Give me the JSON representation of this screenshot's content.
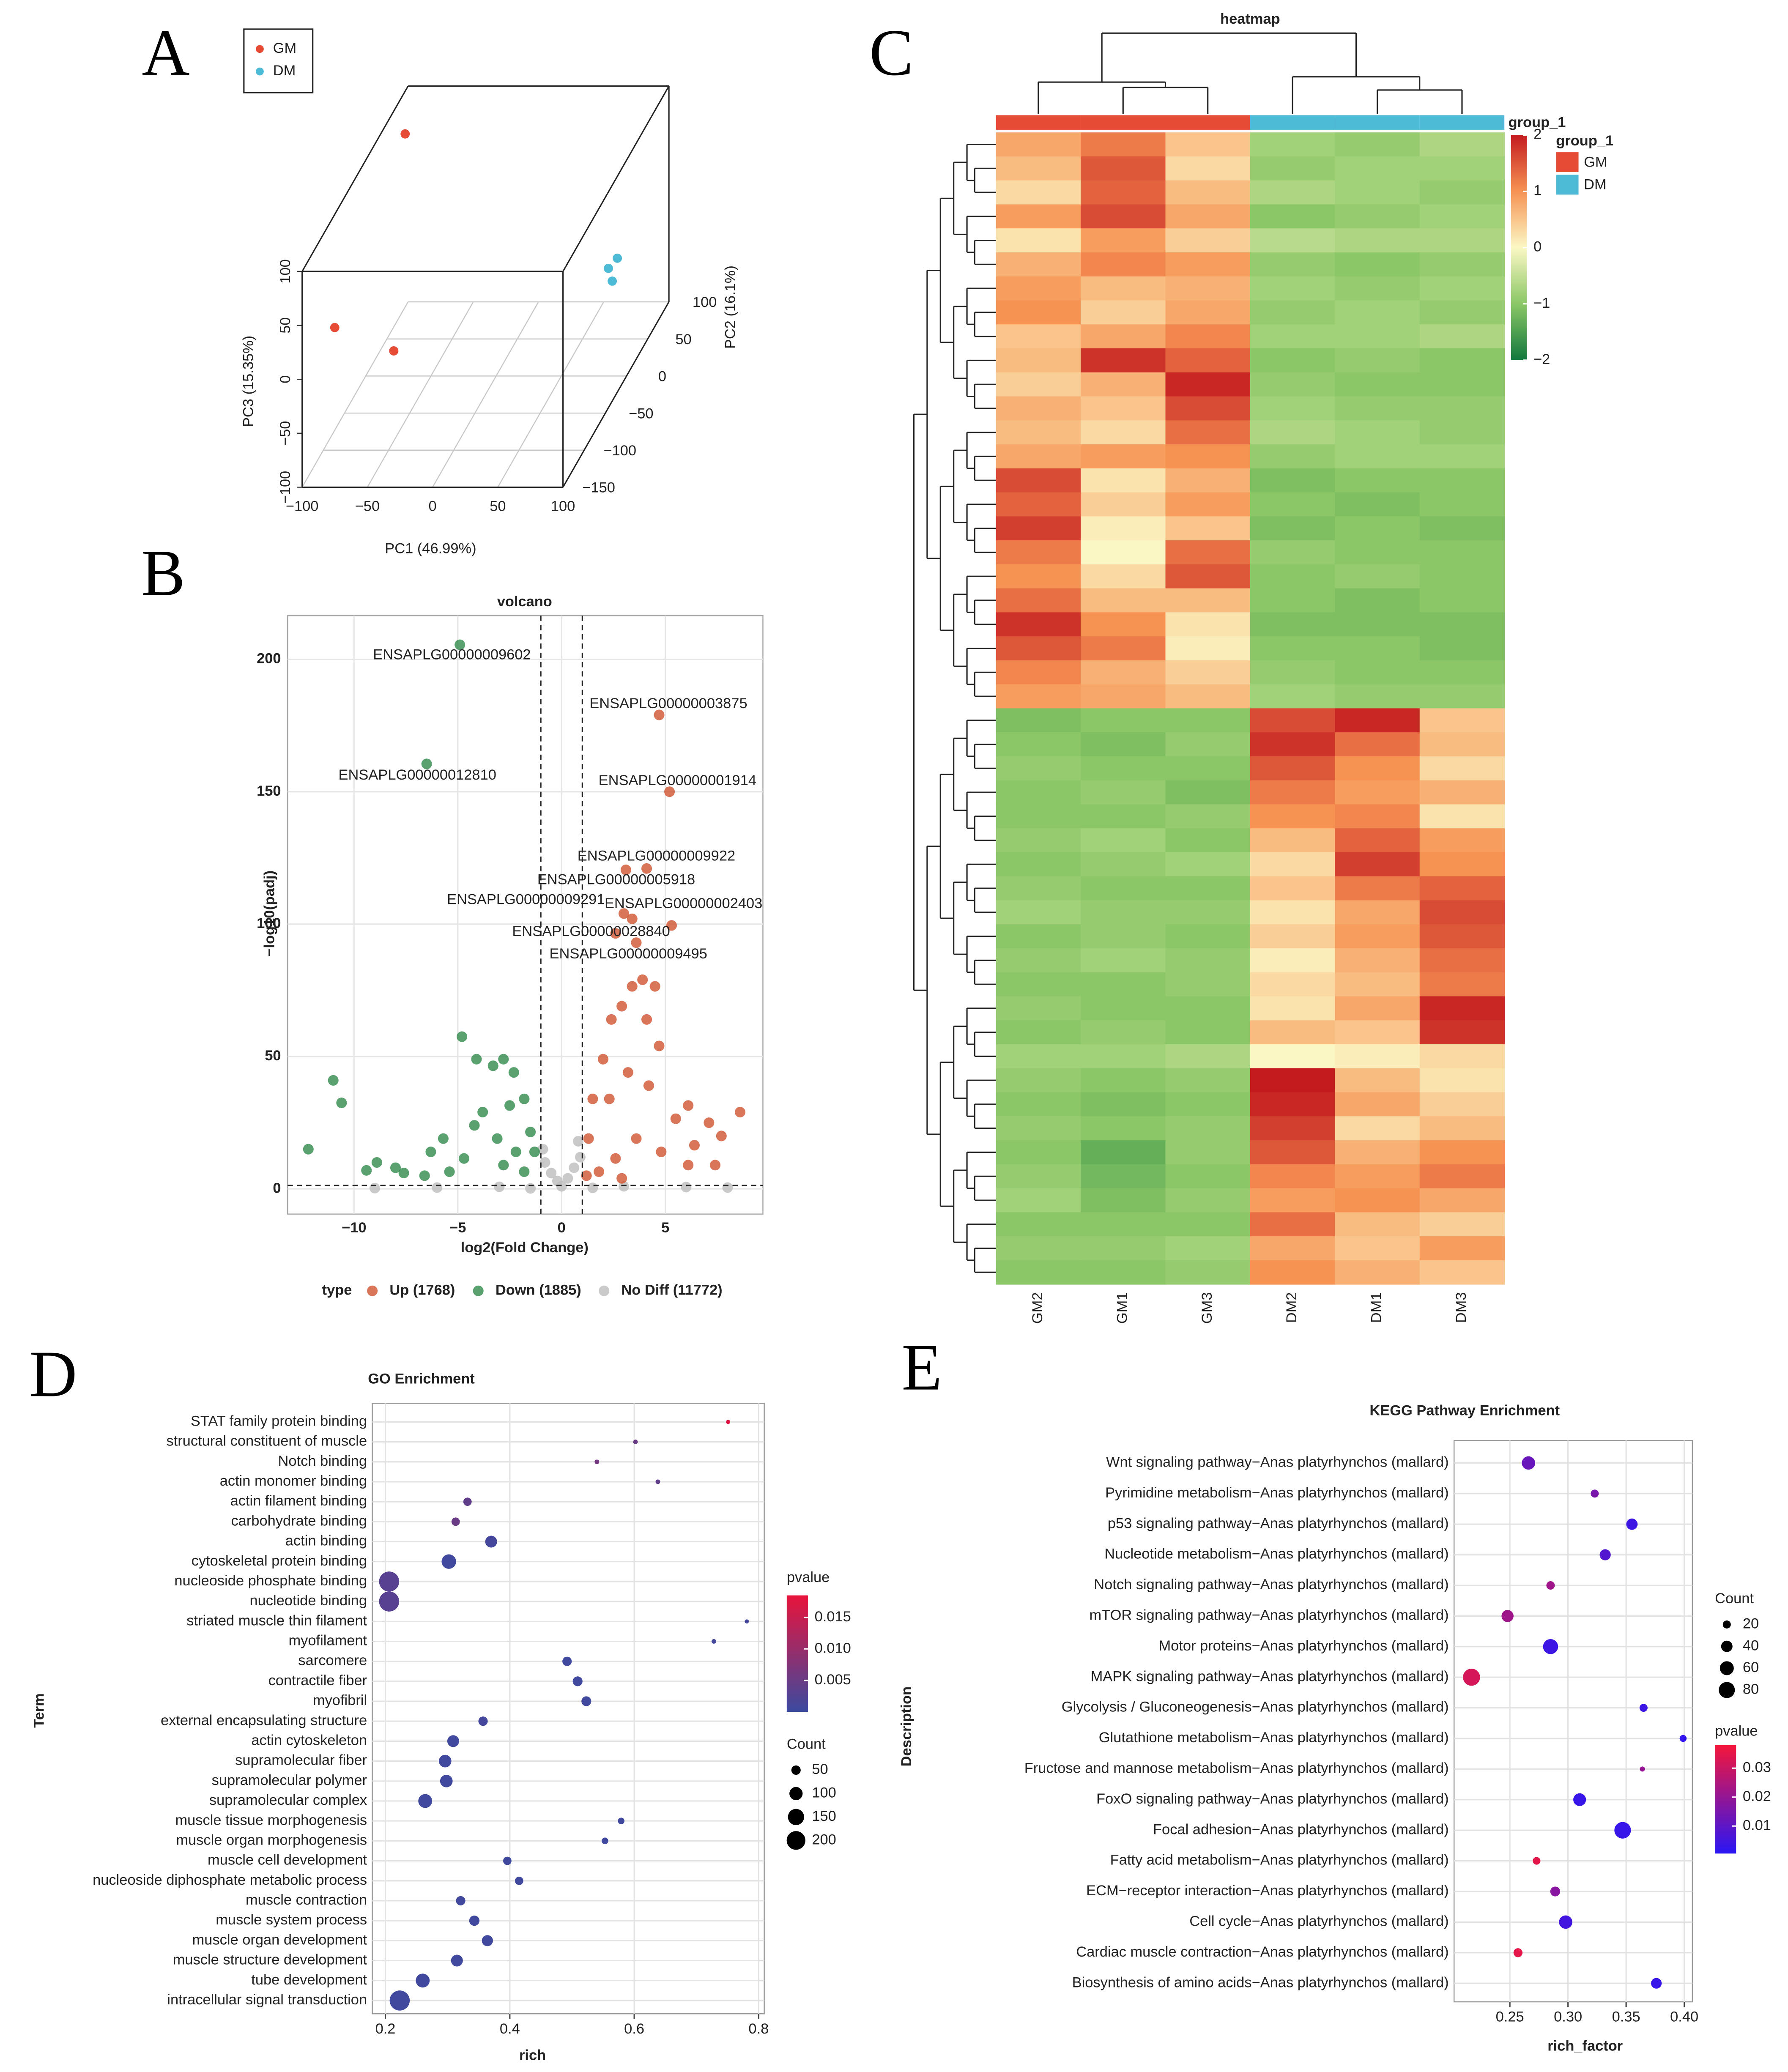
{
  "chart_data": [
    {
      "type": "scatter3d",
      "panel_label": "A",
      "xlabel": "PC1 (46.99%)",
      "ylabel": "PC2 (16.1%)",
      "zlabel": "PC3 (15.35%)",
      "xlim": [
        -100,
        100
      ],
      "ylim": [
        -150,
        100
      ],
      "zlim": [
        -100,
        100
      ],
      "xticks": [
        {
          "value": -100,
          "label": "−100"
        },
        {
          "value": -50,
          "label": "−50"
        },
        0,
        50,
        100
      ],
      "yticks": [
        {
          "value": -150,
          "label": "−150"
        },
        {
          "value": -100,
          "label": "−100"
        },
        {
          "value": -50,
          "label": "−50"
        },
        0,
        50,
        100
      ],
      "zticks": [
        {
          "value": -100,
          "label": "−100"
        },
        {
          "value": -50,
          "label": "−50"
        },
        0,
        50,
        100
      ],
      "series": [
        {
          "name": "GM",
          "color": "#e64b35",
          "x": [
            -75,
            -46,
            -86
          ],
          "y": [
            -150,
            -100,
            50
          ],
          "z": [
            48,
            -8,
            90
          ]
        },
        {
          "name": "DM",
          "color": "#4dbbd5",
          "x": [
            90,
            90,
            90
          ],
          "y": [
            9,
            -12,
            -3
          ],
          "z": [
            3,
            8,
            -10
          ]
        }
      ]
    },
    {
      "type": "scatter",
      "panel_label": "B",
      "title": "volcano",
      "xlabel": "log2(Fold Change)",
      "ylabel": "−log10(padj)",
      "legend_title": "type",
      "xlim": [
        -13.2,
        9.7
      ],
      "ylim": [
        -9.5,
        216.5
      ],
      "xticks": [
        {
          "value": -10,
          "label": "−10"
        },
        {
          "value": -5,
          "label": "−5"
        },
        0,
        5
      ],
      "yticks": [
        0,
        50,
        100,
        150,
        200
      ],
      "vlines": [
        -1,
        1
      ],
      "hline": 1.3,
      "grid": true,
      "series": [
        {
          "name": "Up (1768)",
          "color": "#d0532e",
          "x": [
            8.6,
            7.7,
            7.4,
            7.1,
            6.1,
            5.5,
            4.7,
            4.1,
            3.4,
            2.9,
            2.4,
            2.0,
            1.5,
            1.3,
            2.3,
            3.2,
            4.2,
            3.6,
            4.8,
            6.1,
            2.6,
            1.8,
            1.2,
            2.9,
            3.9,
            4.5,
            2.6,
            6.4
          ],
          "values": [
            29,
            20,
            9,
            25,
            31.5,
            26.5,
            54,
            64,
            76.5,
            69,
            64,
            49,
            34,
            19,
            34,
            44,
            39,
            19,
            14,
            9,
            11.5,
            6.5,
            5,
            4,
            79,
            76.5,
            96.5,
            16.5
          ]
        },
        {
          "name": "Down (1885)",
          "color": "#2f8a4a",
          "x": [
            -12.2,
            -11,
            -10.6,
            -9.4,
            -8.9,
            -8,
            -6.3,
            -5.7,
            -4.8,
            -4.1,
            -3.3,
            -2.8,
            -2.3,
            -1.8,
            -1.5,
            -1.3,
            -2.2,
            -3.1,
            -3.8,
            -4.7,
            -5.4,
            -6.6,
            -7.6,
            -1.8,
            -2.8,
            -4.2,
            -2.5
          ],
          "values": [
            15,
            41,
            32.5,
            7,
            10,
            8,
            14,
            19,
            57.5,
            49,
            46.5,
            49,
            44,
            34,
            21.5,
            14,
            14,
            19,
            29,
            11.5,
            6.5,
            5,
            6,
            6.5,
            9,
            24,
            31.5
          ]
        },
        {
          "name": "No Diff (11772)",
          "color": "#bdbdbd",
          "x": [
            -0.8,
            -0.5,
            -0.2,
            0,
            0.3,
            0.6,
            0.9,
            -3,
            -6,
            3,
            6,
            -9,
            8,
            -1.5,
            1.5,
            -0.9,
            0.8
          ],
          "values": [
            10,
            6,
            3,
            1,
            4,
            8,
            12,
            0.8,
            0.5,
            1,
            0.7,
            0.3,
            0.5,
            0.2,
            0.4,
            15,
            18
          ]
        }
      ],
      "annotations": [
        {
          "text": "ENSAPLG00000009602",
          "x": -4.9,
          "y": 205.5,
          "color": "#2f8a4a"
        },
        {
          "text": "ENSAPLG00000012810",
          "x": -6.5,
          "y": 160.5,
          "color": "#2f8a4a"
        },
        {
          "text": "ENSAPLG00000003875",
          "x": 4.7,
          "y": 179,
          "color": "#d0532e"
        },
        {
          "text": "ENSAPLG00000001914",
          "x": 5.2,
          "y": 150,
          "color": "#d0532e"
        },
        {
          "text": "ENSAPLG00000009922",
          "x": 3.1,
          "y": 120.5,
          "color": "#d0532e"
        },
        {
          "text": "ENSAPLG00000005918",
          "x": 4.1,
          "y": 121,
          "color": "#d0532e"
        },
        {
          "text": "ENSAPLG00000009291",
          "x": 3.0,
          "y": 104,
          "color": "#d0532e"
        },
        {
          "text": "ENSAPLG00000002403",
          "x": 5.3,
          "y": 99.5,
          "color": "#d0532e"
        },
        {
          "text": "ENSAPLG00000028840",
          "x": 3.4,
          "y": 102,
          "color": "#d0532e"
        },
        {
          "text": "ENSAPLG00000009495",
          "x": 3.6,
          "y": 93,
          "color": "#d0532e"
        }
      ]
    },
    {
      "type": "heatmap",
      "panel_label": "C",
      "title": "heatmap",
      "group_label": "group_1",
      "categories": [
        "GM2",
        "GM1",
        "GM3",
        "DM2",
        "DM1",
        "DM3"
      ],
      "groups": [
        "GM",
        "GM",
        "GM",
        "DM",
        "DM",
        "DM"
      ],
      "group_legend": {
        "title": "group_1",
        "names": [
          "GM",
          "DM"
        ],
        "colors": [
          "#e64b35",
          "#4dbbd5"
        ]
      },
      "zlim": [
        -2,
        2
      ],
      "zticks": [
        {
          "value": -2,
          "label": "−2"
        },
        {
          "value": -1,
          "label": "−1"
        },
        0,
        1,
        2
      ],
      "colorscale": [
        "#11783c",
        "#8bc766",
        "#fbf7c4",
        "#f69353",
        "#c41b1f"
      ],
      "values": [
        [
          0.8,
          1.2,
          0.5,
          -0.8,
          -0.9,
          -0.7
        ],
        [
          0.6,
          1.5,
          0.3,
          -0.9,
          -0.8,
          -0.8
        ],
        [
          0.3,
          1.4,
          0.6,
          -0.7,
          -0.8,
          -0.9
        ],
        [
          0.9,
          1.6,
          0.8,
          -1.0,
          -0.9,
          -0.8
        ],
        [
          0.2,
          0.9,
          0.4,
          -0.6,
          -0.7,
          -0.7
        ],
        [
          0.7,
          1.1,
          0.9,
          -0.9,
          -1.0,
          -0.9
        ],
        [
          0.9,
          0.6,
          0.7,
          -0.8,
          -0.9,
          -0.8
        ],
        [
          1.0,
          0.4,
          0.8,
          -0.9,
          -0.8,
          -0.9
        ],
        [
          0.5,
          0.8,
          1.1,
          -0.8,
          -0.8,
          -0.7
        ],
        [
          0.6,
          1.8,
          1.4,
          -1.0,
          -0.9,
          -1.0
        ],
        [
          0.4,
          0.7,
          1.9,
          -0.9,
          -1.0,
          -1.0
        ],
        [
          0.7,
          0.5,
          1.6,
          -0.8,
          -0.9,
          -0.9
        ],
        [
          0.6,
          0.3,
          1.3,
          -0.7,
          -0.8,
          -0.9
        ],
        [
          0.8,
          0.9,
          1.0,
          -0.9,
          -0.8,
          -0.8
        ],
        [
          1.6,
          0.2,
          0.7,
          -1.1,
          -1.0,
          -1.0
        ],
        [
          1.4,
          0.4,
          0.9,
          -1.0,
          -1.1,
          -1.0
        ],
        [
          1.7,
          0.1,
          0.5,
          -1.1,
          -1.0,
          -1.1
        ],
        [
          1.2,
          0.0,
          1.3,
          -0.9,
          -1.0,
          -1.0
        ],
        [
          1.0,
          0.3,
          1.5,
          -1.0,
          -0.9,
          -1.0
        ],
        [
          1.3,
          0.6,
          0.6,
          -1.0,
          -1.1,
          -1.0
        ],
        [
          1.8,
          1.0,
          0.2,
          -1.1,
          -1.1,
          -1.1
        ],
        [
          1.5,
          1.2,
          0.1,
          -1.0,
          -1.0,
          -1.1
        ],
        [
          1.1,
          0.7,
          0.4,
          -0.9,
          -1.0,
          -1.0
        ],
        [
          0.9,
          0.8,
          0.6,
          -0.8,
          -0.9,
          -0.9
        ],
        [
          -1.1,
          -1.0,
          -1.0,
          1.6,
          1.9,
          0.5
        ],
        [
          -1.0,
          -1.1,
          -0.9,
          1.8,
          1.3,
          0.6
        ],
        [
          -0.9,
          -1.0,
          -1.0,
          1.5,
          1.0,
          0.3
        ],
        [
          -1.0,
          -0.9,
          -1.1,
          1.2,
          0.9,
          0.7
        ],
        [
          -1.0,
          -1.0,
          -0.9,
          1.0,
          1.1,
          0.2
        ],
        [
          -0.9,
          -0.8,
          -1.0,
          0.6,
          1.4,
          0.9
        ],
        [
          -1.0,
          -0.9,
          -0.8,
          0.3,
          1.7,
          1.0
        ],
        [
          -0.9,
          -1.0,
          -1.0,
          0.5,
          1.2,
          1.4
        ],
        [
          -0.8,
          -0.9,
          -0.9,
          0.2,
          0.8,
          1.6
        ],
        [
          -1.0,
          -0.9,
          -1.0,
          0.4,
          0.9,
          1.5
        ],
        [
          -0.9,
          -0.8,
          -0.9,
          0.1,
          0.7,
          1.3
        ],
        [
          -1.0,
          -1.0,
          -0.9,
          0.3,
          0.6,
          1.2
        ],
        [
          -0.9,
          -1.0,
          -1.0,
          0.2,
          0.8,
          1.9
        ],
        [
          -1.0,
          -0.9,
          -1.0,
          0.6,
          0.5,
          1.8
        ],
        [
          -0.8,
          -0.8,
          -0.7,
          0.0,
          0.1,
          0.3
        ],
        [
          -0.9,
          -1.0,
          -0.9,
          2.0,
          0.6,
          0.2
        ],
        [
          -1.0,
          -1.1,
          -1.0,
          1.9,
          0.8,
          0.4
        ],
        [
          -0.9,
          -1.0,
          -0.9,
          1.7,
          0.3,
          0.6
        ],
        [
          -1.0,
          -1.3,
          -0.9,
          1.5,
          0.7,
          1.0
        ],
        [
          -0.9,
          -1.2,
          -1.0,
          1.1,
          0.9,
          1.2
        ],
        [
          -0.8,
          -1.1,
          -0.9,
          0.9,
          1.0,
          0.8
        ],
        [
          -1.0,
          -1.0,
          -1.0,
          1.3,
          0.6,
          0.4
        ],
        [
          -0.9,
          -0.9,
          -0.8,
          0.8,
          0.5,
          0.9
        ],
        [
          -1.0,
          -1.0,
          -0.9,
          1.0,
          0.7,
          0.5
        ]
      ]
    },
    {
      "type": "bubble",
      "panel_label": "D",
      "title": "GO Enrichment",
      "xlabel": "rich",
      "ylabel": "Term",
      "xlim": [
        0.179,
        0.809
      ],
      "xticks": [
        0.2,
        0.4,
        0.6,
        0.8
      ],
      "categories": [
        "STAT family protein binding",
        "structural constituent of muscle",
        "Notch binding",
        "actin monomer binding",
        "actin filament binding",
        "carbohydrate binding",
        "actin binding",
        "cytoskeletal protein binding",
        "nucleoside phosphate binding",
        "nucleotide binding",
        "striated muscle thin filament",
        "myofilament",
        "sarcomere",
        "contractile fiber",
        "myofibril",
        "external encapsulating structure",
        "actin cytoskeleton",
        "supramolecular fiber",
        "supramolecular polymer",
        "supramolecular complex",
        "muscle tissue morphogenesis",
        "muscle organ morphogenesis",
        "muscle cell development",
        "nucleoside diphosphate metabolic process",
        "muscle contraction",
        "muscle system process",
        "muscle organ development",
        "muscle structure development",
        "tube development",
        "intracellular signal transduction"
      ],
      "label_colors": [
        "#1f9068",
        "#1f9068",
        "#1f9068",
        "#1f9068",
        "#1f9068",
        "#1f9068",
        "#1f9068",
        "#1f9068",
        "#1f9068",
        "#1f9068",
        "#36a7c0",
        "#36a7c0",
        "#36a7c0",
        "#36a7c0",
        "#36a7c0",
        "#36a7c0",
        "#36a7c0",
        "#36a7c0",
        "#36a7c0",
        "#36a7c0",
        "#d7402a",
        "#d7402a",
        "#d7402a",
        "#d7402a",
        "#d7402a",
        "#d7402a",
        "#d7402a",
        "#d7402a",
        "#d7402a",
        "#d7402a"
      ],
      "values": [
        0.751,
        0.602,
        0.54,
        0.638,
        0.332,
        0.313,
        0.37,
        0.302,
        0.206,
        0.206,
        0.781,
        0.728,
        0.492,
        0.509,
        0.523,
        0.357,
        0.309,
        0.296,
        0.298,
        0.264,
        0.579,
        0.553,
        0.396,
        0.415,
        0.321,
        0.343,
        0.364,
        0.315,
        0.26,
        0.223
      ],
      "sizes": [
        10,
        12,
        12,
        12,
        40,
        40,
        80,
        120,
        230,
        230,
        10,
        12,
        50,
        55,
        55,
        50,
        80,
        90,
        90,
        110,
        25,
        25,
        40,
        40,
        50,
        60,
        70,
        80,
        110,
        230
      ],
      "color_values": [
        0.017,
        0.005,
        0.006,
        0.004,
        0.004,
        0.005,
        0.001,
        0.0005,
        0.003,
        0.003,
        0.001,
        0.001,
        0.0005,
        0.0005,
        0.0005,
        0.001,
        0.0005,
        0.0005,
        0.0005,
        0.0005,
        0.0005,
        0.0005,
        0.0005,
        0.0005,
        0.0005,
        0.0005,
        0.0005,
        0.0005,
        0.0005,
        0.0005
      ],
      "color_legend_title": "pvalue",
      "clim": [
        0,
        0.0185
      ],
      "cticks": [
        0.005,
        {
          "value": 0.01,
          "label": "0.010"
        },
        0.015
      ],
      "colorscale": [
        "#3b4aa0",
        "#e8143c"
      ],
      "size_legend_title": "Count",
      "size_ticks": [
        50,
        100,
        150,
        200
      ]
    },
    {
      "type": "bubble",
      "panel_label": "E",
      "title": "KEGG Pathway Enrichment",
      "xlabel": "rich_factor",
      "ylabel": "Description",
      "xlim": [
        0.202,
        0.407
      ],
      "xticks": [
        0.25,
        {
          "value": 0.3,
          "label": "0.30"
        },
        0.35,
        {
          "value": 0.4,
          "label": "0.40"
        }
      ],
      "categories": [
        "Wnt signaling pathway−Anas platyrhynchos (mallard)",
        "Pyrimidine metabolism−Anas platyrhynchos (mallard)",
        "p53 signaling pathway−Anas platyrhynchos (mallard)",
        "Nucleotide metabolism−Anas platyrhynchos (mallard)",
        "Notch signaling pathway−Anas platyrhynchos (mallard)",
        "mTOR signaling pathway−Anas platyrhynchos (mallard)",
        "Motor proteins−Anas platyrhynchos (mallard)",
        "MAPK signaling pathway−Anas platyrhynchos (mallard)",
        "Glycolysis / Gluconeogenesis−Anas platyrhynchos (mallard)",
        "Glutathione metabolism−Anas platyrhynchos (mallard)",
        "Fructose and mannose metabolism−Anas platyrhynchos (mallard)",
        "FoxO signaling pathway−Anas platyrhynchos (mallard)",
        "Focal adhesion−Anas platyrhynchos (mallard)",
        "Fatty acid metabolism−Anas platyrhynchos (mallard)",
        "ECM−receptor interaction−Anas platyrhynchos (mallard)",
        "Cell cycle−Anas platyrhynchos (mallard)",
        "Cardiac muscle contraction−Anas platyrhynchos (mallard)",
        "Biosynthesis of amino acids−Anas platyrhynchos (mallard)"
      ],
      "label_colors": [
        "#e8917a",
        "#e8917a",
        "#e8917a",
        "#e8917a",
        "#40a9c8",
        "#e8917a",
        "#6d7fa6",
        "#40a9c8",
        "#e8917a",
        "#e8917a",
        "#d2362b",
        "#40a9c8",
        "#40a9c8",
        "#40a9c8",
        "#d2362b",
        "#d2362b",
        "#40a9c8",
        "#d2362b"
      ],
      "values": [
        0.266,
        0.323,
        0.355,
        0.332,
        0.285,
        0.248,
        0.285,
        0.217,
        0.365,
        0.399,
        0.364,
        0.31,
        0.347,
        0.273,
        0.289,
        0.298,
        0.257,
        0.376
      ],
      "sizes": [
        55,
        20,
        40,
        38,
        22,
        45,
        70,
        90,
        20,
        15,
        8,
        50,
        85,
        18,
        30,
        55,
        25,
        35
      ],
      "color_values": [
        0.012,
        0.015,
        0.004,
        0.008,
        0.022,
        0.022,
        0.004,
        0.032,
        0.004,
        0.002,
        0.02,
        0.003,
        0.003,
        0.035,
        0.018,
        0.005,
        0.035,
        0.003
      ],
      "color_legend_title": "pvalue",
      "clim": [
        0.0005,
        0.038
      ],
      "cticks": [
        0.01,
        0.02,
        0.03
      ],
      "colorscale": [
        "#2a16f5",
        "#f5163a"
      ],
      "size_legend_title": "Count",
      "size_ticks": [
        20,
        40,
        60,
        80
      ]
    }
  ]
}
